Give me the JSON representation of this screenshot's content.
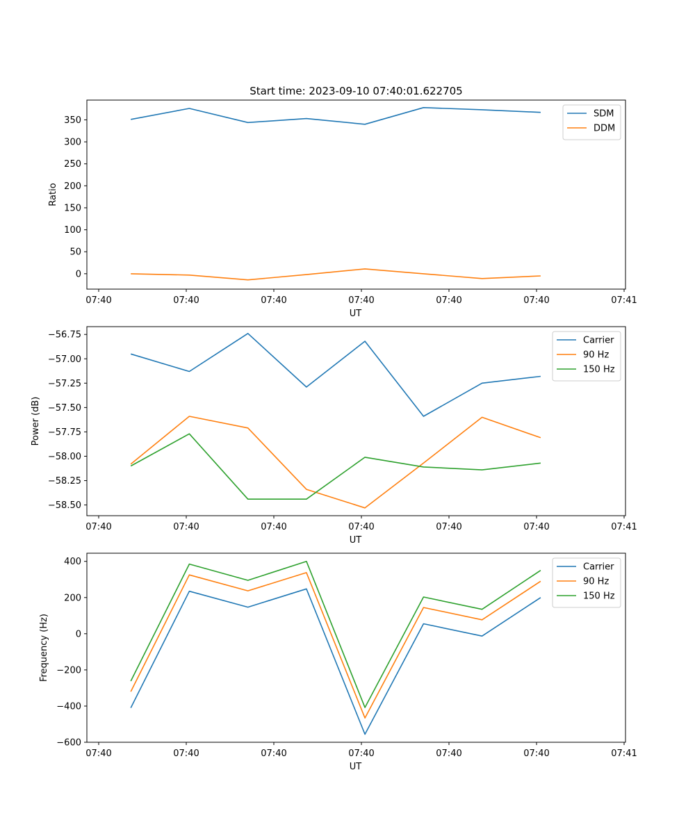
{
  "chart_data": [
    {
      "type": "line",
      "title": "Start time: 2023-09-10 07:40:01.622705",
      "xlabel": "UT",
      "ylabel": "Ratio",
      "x_tick_labels": [
        "07:40",
        "07:40",
        "07:40",
        "07:40",
        "07:40",
        "07:40",
        "07:40",
        "07:41"
      ],
      "x": [
        0.75,
        1.75,
        2.75,
        3.75,
        4.75,
        5.75,
        6.75,
        7.75
      ],
      "xlim": [
        0,
        9.2
      ],
      "ylim": [
        -35,
        395
      ],
      "yticks": [
        0,
        50,
        100,
        150,
        200,
        250,
        300,
        350
      ],
      "legend_position": "top-right",
      "series": [
        {
          "name": "SDM",
          "color": "#1f77b4",
          "values": [
            351,
            376,
            344,
            353,
            340,
            378,
            373,
            367
          ]
        },
        {
          "name": "DDM",
          "color": "#ff7f0e",
          "values": [
            0,
            -3,
            -14,
            -2,
            11,
            0,
            -11,
            -5
          ]
        }
      ]
    },
    {
      "type": "line",
      "title": "",
      "xlabel": "UT",
      "ylabel": "Power (dB)",
      "x_tick_labels": [
        "07:40",
        "07:40",
        "07:40",
        "07:40",
        "07:40",
        "07:40",
        "07:40",
        "07:41"
      ],
      "x": [
        0.75,
        1.75,
        2.75,
        3.75,
        4.75,
        5.75,
        6.75,
        7.75
      ],
      "xlim": [
        0,
        9.2
      ],
      "ylim": [
        -58.61,
        -56.67
      ],
      "yticks": [
        -58.5,
        -58.25,
        -58.0,
        -57.75,
        -57.5,
        -57.25,
        -57.0,
        -56.75
      ],
      "ytick_labels": [
        "−58.50",
        "−58.25",
        "−58.00",
        "−57.75",
        "−57.50",
        "−57.25",
        "−57.00",
        "−56.75"
      ],
      "legend_position": "top-right",
      "series": [
        {
          "name": "Carrier",
          "color": "#1f77b4",
          "values": [
            -56.95,
            -57.13,
            -56.74,
            -57.29,
            -56.82,
            -57.59,
            -57.25,
            -57.18
          ]
        },
        {
          "name": "90 Hz",
          "color": "#ff7f0e",
          "values": [
            -58.08,
            -57.59,
            -57.71,
            -58.34,
            -58.53,
            -58.07,
            -57.6,
            -57.81
          ]
        },
        {
          "name": "150 Hz",
          "color": "#2ca02c",
          "values": [
            -58.1,
            -57.77,
            -58.44,
            -58.44,
            -58.01,
            -58.11,
            -58.14,
            -58.07
          ]
        }
      ]
    },
    {
      "type": "line",
      "title": "",
      "xlabel": "UT",
      "ylabel": "Frequency (Hz)",
      "x_tick_labels": [
        "07:40",
        "07:40",
        "07:40",
        "07:40",
        "07:40",
        "07:40",
        "07:40",
        "07:41"
      ],
      "x": [
        0.75,
        1.75,
        2.75,
        3.75,
        4.75,
        5.75,
        6.75,
        7.75
      ],
      "xlim": [
        0,
        9.2
      ],
      "ylim": [
        -600,
        445
      ],
      "yticks": [
        -600,
        -400,
        -200,
        0,
        200,
        400
      ],
      "ytick_labels": [
        "−600",
        "−400",
        "−200",
        "0",
        "200",
        "400"
      ],
      "legend_position": "top-right",
      "series": [
        {
          "name": "Carrier",
          "color": "#1f77b4",
          "values": [
            -410,
            235,
            147,
            248,
            -556,
            55,
            -13,
            200
          ]
        },
        {
          "name": "90 Hz",
          "color": "#ff7f0e",
          "values": [
            -320,
            325,
            237,
            338,
            -466,
            145,
            77,
            290
          ]
        },
        {
          "name": "150 Hz",
          "color": "#2ca02c",
          "values": [
            -262,
            385,
            295,
            400,
            -408,
            203,
            135,
            350
          ]
        }
      ]
    }
  ]
}
